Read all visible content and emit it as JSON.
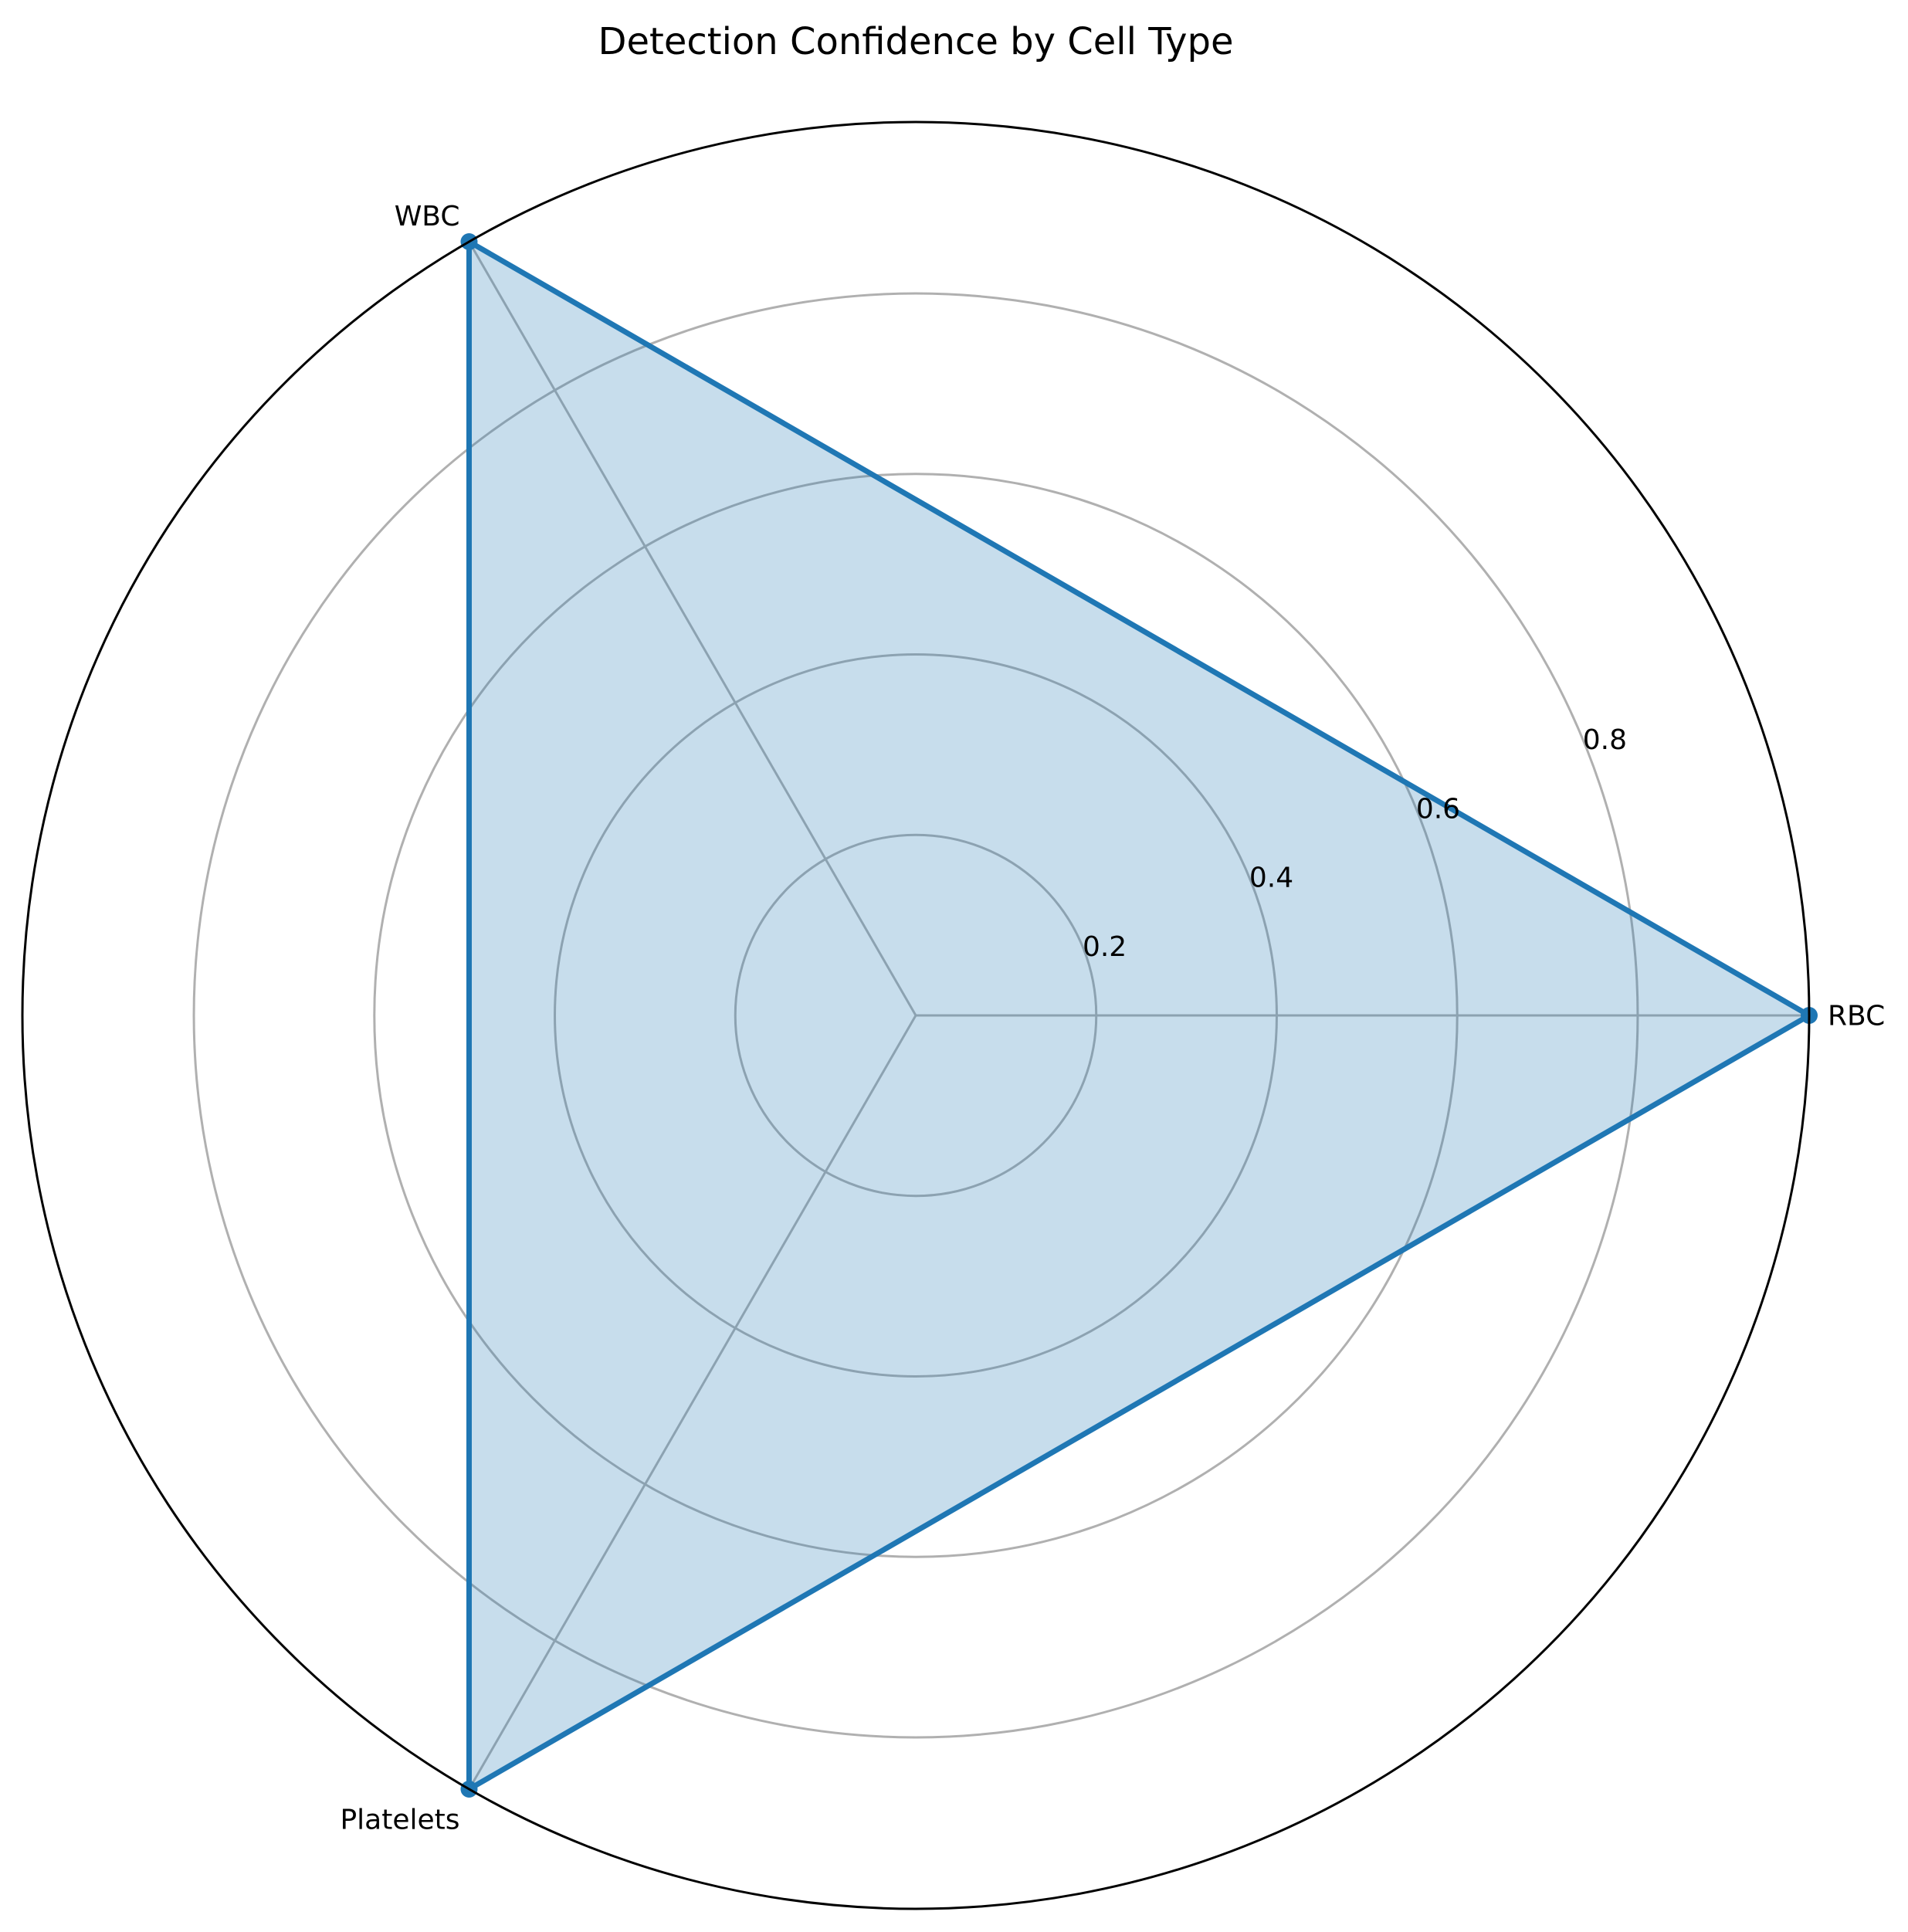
{
  "chart_data": {
    "type": "radar",
    "title": "Detection Confidence by Cell Type",
    "categories": [
      "RBC",
      "WBC",
      "Platelets"
    ],
    "series": [
      {
        "values": [
          0.99,
          0.99,
          0.99
        ],
        "color": "#1f77b4"
      }
    ],
    "rlim": [
      0,
      0.99
    ],
    "r_ticks": [
      0.2,
      0.4,
      0.6,
      0.8
    ],
    "r_tick_labels": [
      "0.2",
      "0.4",
      "0.6",
      "0.8"
    ],
    "grid": true,
    "colors": {
      "line": "#1f77b4",
      "fill": "#1f77b4",
      "grid": "#b0b0b0",
      "frame": "#000000",
      "text": "#000000"
    }
  }
}
